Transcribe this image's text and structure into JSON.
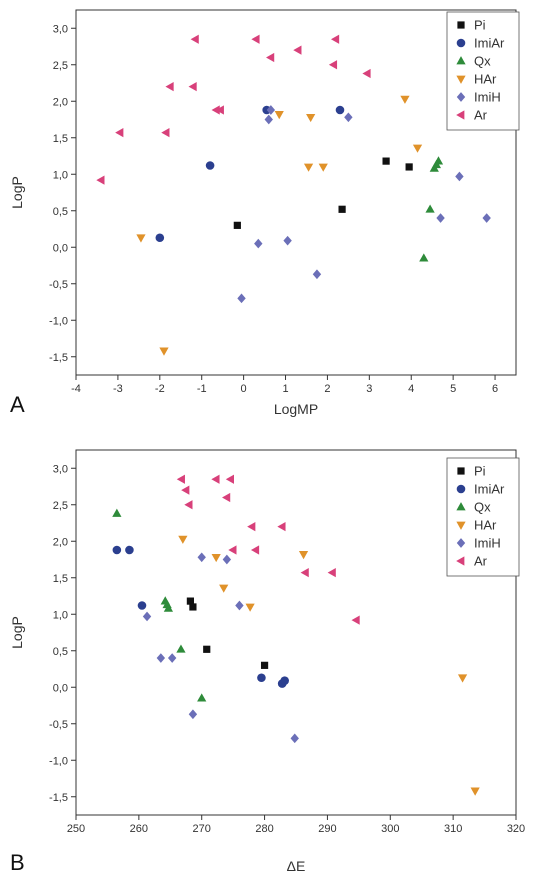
{
  "figure": {
    "panel_labels": [
      "A",
      "B"
    ]
  },
  "series_style": {
    "Pi": {
      "marker": "square",
      "color": "#111111"
    },
    "ImiAr": {
      "marker": "circle",
      "color": "#2b3f8f"
    },
    "Qx": {
      "marker": "triangle-up",
      "color": "#2e8b3a"
    },
    "HAr": {
      "marker": "triangle-down",
      "color": "#e0922a"
    },
    "ImiH": {
      "marker": "diamond",
      "color": "#6b6fb8"
    },
    "Ar": {
      "marker": "triangle-left",
      "color": "#d8407a"
    }
  },
  "chart_data": [
    {
      "type": "scatter",
      "panel": "A",
      "title": "",
      "xlabel": "LogMP",
      "ylabel": "LogP",
      "xlim": [
        -4,
        6.5
      ],
      "ylim": [
        -1.75,
        3.25
      ],
      "xticks": [
        -4,
        -3,
        -2,
        -1,
        0,
        1,
        2,
        3,
        4,
        5,
        6
      ],
      "yticks": [
        -1.5,
        -1.0,
        -0.5,
        0.0,
        0.5,
        1.0,
        1.5,
        2.0,
        2.5,
        3.0
      ],
      "xtick_labels": [
        "-4",
        "-3",
        "-2",
        "-1",
        "0",
        "1",
        "2",
        "3",
        "4",
        "5",
        "6"
      ],
      "ytick_labels": [
        "-1,5",
        "-1,0",
        "-0,5",
        "0,0",
        "0,5",
        "1,0",
        "1,5",
        "2,0",
        "2,5",
        "3,0"
      ],
      "legend_position": "top-right",
      "series": [
        {
          "name": "Pi",
          "points": [
            [
              -0.15,
              0.3
            ],
            [
              2.35,
              0.52
            ],
            [
              3.4,
              1.18
            ],
            [
              3.95,
              1.1
            ]
          ]
        },
        {
          "name": "ImiAr",
          "points": [
            [
              -2.0,
              0.13
            ],
            [
              -0.8,
              1.12
            ],
            [
              0.55,
              1.88
            ],
            [
              2.3,
              1.88
            ]
          ]
        },
        {
          "name": "Qx",
          "points": [
            [
              4.3,
              -0.15
            ],
            [
              4.45,
              0.52
            ],
            [
              4.55,
              1.08
            ],
            [
              4.6,
              1.13
            ],
            [
              4.65,
              1.18
            ]
          ]
        },
        {
          "name": "HAr",
          "points": [
            [
              -2.45,
              0.13
            ],
            [
              -1.9,
              -1.42
            ],
            [
              0.85,
              1.82
            ],
            [
              1.55,
              1.1
            ],
            [
              1.6,
              1.78
            ],
            [
              1.9,
              1.1
            ],
            [
              3.85,
              2.03
            ],
            [
              4.15,
              1.36
            ]
          ]
        },
        {
          "name": "ImiH",
          "points": [
            [
              -0.05,
              -0.7
            ],
            [
              0.35,
              0.05
            ],
            [
              0.6,
              1.75
            ],
            [
              0.65,
              1.88
            ],
            [
              1.05,
              0.09
            ],
            [
              1.75,
              -0.37
            ],
            [
              2.5,
              1.78
            ],
            [
              4.7,
              0.4
            ],
            [
              5.15,
              0.97
            ],
            [
              5.8,
              0.4
            ]
          ]
        },
        {
          "name": "Ar",
          "points": [
            [
              -3.4,
              0.92
            ],
            [
              -2.95,
              1.57
            ],
            [
              -1.85,
              1.57
            ],
            [
              -1.75,
              2.2
            ],
            [
              -1.2,
              2.2
            ],
            [
              -1.15,
              2.85
            ],
            [
              -0.65,
              1.88
            ],
            [
              -0.55,
              1.88
            ],
            [
              0.3,
              2.85
            ],
            [
              0.65,
              2.6
            ],
            [
              1.3,
              2.7
            ],
            [
              2.15,
              2.5
            ],
            [
              2.2,
              2.85
            ],
            [
              2.95,
              2.38
            ]
          ]
        }
      ]
    },
    {
      "type": "scatter",
      "panel": "B",
      "title": "",
      "xlabel": "ΔE",
      "ylabel": "LogP",
      "xlim": [
        250,
        320
      ],
      "ylim": [
        -1.75,
        3.25
      ],
      "xticks": [
        250,
        260,
        270,
        280,
        290,
        300,
        310,
        320
      ],
      "yticks": [
        -1.5,
        -1.0,
        -0.5,
        0.0,
        0.5,
        1.0,
        1.5,
        2.0,
        2.5,
        3.0
      ],
      "xtick_labels": [
        "250",
        "260",
        "270",
        "280",
        "290",
        "300",
        "310",
        "320"
      ],
      "ytick_labels": [
        "-1,5",
        "-1,0",
        "-0,5",
        "0,0",
        "0,5",
        "1,0",
        "1,5",
        "2,0",
        "2,5",
        "3,0"
      ],
      "legend_position": "top-right",
      "series": [
        {
          "name": "Pi",
          "points": [
            [
              268.2,
              1.18
            ],
            [
              268.6,
              1.1
            ],
            [
              270.8,
              0.52
            ],
            [
              280.0,
              0.3
            ]
          ]
        },
        {
          "name": "ImiAr",
          "points": [
            [
              256.5,
              1.88
            ],
            [
              258.5,
              1.88
            ],
            [
              260.5,
              1.12
            ],
            [
              279.5,
              0.13
            ],
            [
              282.8,
              0.05
            ],
            [
              283.2,
              0.09
            ]
          ]
        },
        {
          "name": "Qx",
          "points": [
            [
              256.5,
              2.38
            ],
            [
              264.2,
              1.18
            ],
            [
              264.5,
              1.13
            ],
            [
              264.7,
              1.08
            ],
            [
              266.7,
              0.52
            ],
            [
              270.0,
              -0.15
            ]
          ]
        },
        {
          "name": "HAr",
          "points": [
            [
              267.0,
              2.03
            ],
            [
              272.3,
              1.78
            ],
            [
              273.5,
              1.36
            ],
            [
              277.7,
              1.1
            ],
            [
              286.2,
              1.82
            ],
            [
              311.5,
              0.13
            ],
            [
              313.5,
              -1.42
            ]
          ]
        },
        {
          "name": "ImiH",
          "points": [
            [
              261.3,
              0.97
            ],
            [
              263.5,
              0.4
            ],
            [
              265.3,
              0.4
            ],
            [
              268.6,
              -0.37
            ],
            [
              270.0,
              1.78
            ],
            [
              274.0,
              1.75
            ],
            [
              276.0,
              1.12
            ],
            [
              284.8,
              -0.7
            ]
          ]
        },
        {
          "name": "Ar",
          "points": [
            [
              266.8,
              2.85
            ],
            [
              267.5,
              2.7
            ],
            [
              268.0,
              2.5
            ],
            [
              272.3,
              2.85
            ],
            [
              274.0,
              2.6
            ],
            [
              274.6,
              2.85
            ],
            [
              275.0,
              1.88
            ],
            [
              278.0,
              2.2
            ],
            [
              278.6,
              1.88
            ],
            [
              282.8,
              2.2
            ],
            [
              286.5,
              1.57
            ],
            [
              290.8,
              1.57
            ],
            [
              294.6,
              0.92
            ]
          ]
        }
      ]
    }
  ]
}
